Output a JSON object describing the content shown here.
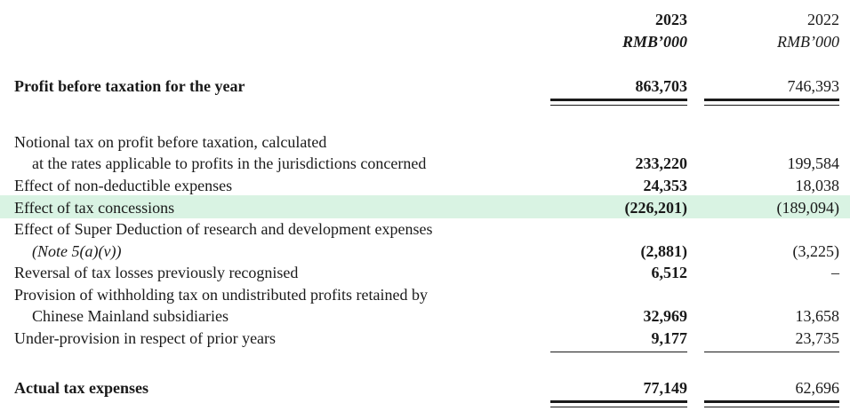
{
  "header": {
    "year_2023": "2023",
    "unit_2023": "RMB’000",
    "year_2022": "2022",
    "unit_2022": "RMB’000"
  },
  "profit_before_tax": {
    "label": "Profit before taxation for the year",
    "v2023": "863,703",
    "v2022": "746,393"
  },
  "rows": {
    "notional_line1": "Notional tax on profit before taxation, calculated",
    "notional_line2": "at the rates applicable to profits in the jurisdictions concerned",
    "notional_2023": "233,220",
    "notional_2022": "199,584",
    "nondeductible_label": "Effect of non-deductible expenses",
    "nondeductible_2023": "24,353",
    "nondeductible_2022": "18,038",
    "concessions_label": "Effect of tax concessions",
    "concessions_2023": "(226,201)",
    "concessions_2022": "(189,094)",
    "super_line1": "Effect of Super Deduction of research and development expenses",
    "super_line2": "(Note 5(a)(v))",
    "super_2023": "(2,881)",
    "super_2022": "(3,225)",
    "reversal_label": "Reversal of tax losses previously recognised",
    "reversal_2023": "6,512",
    "reversal_2022": "–",
    "withholding_line1": "Provision of withholding tax on undistributed profits retained by",
    "withholding_line2": "Chinese Mainland subsidiaries",
    "withholding_2023": "32,969",
    "withholding_2022": "13,658",
    "underprovision_label": "Under-provision in respect of prior years",
    "underprovision_2023": "9,177",
    "underprovision_2022": "23,735"
  },
  "actual_tax": {
    "label": "Actual tax expenses",
    "v2023": "77,149",
    "v2022": "62,696"
  },
  "colors": {
    "highlight": "#d9f3e3",
    "text": "#1a1a1a"
  }
}
